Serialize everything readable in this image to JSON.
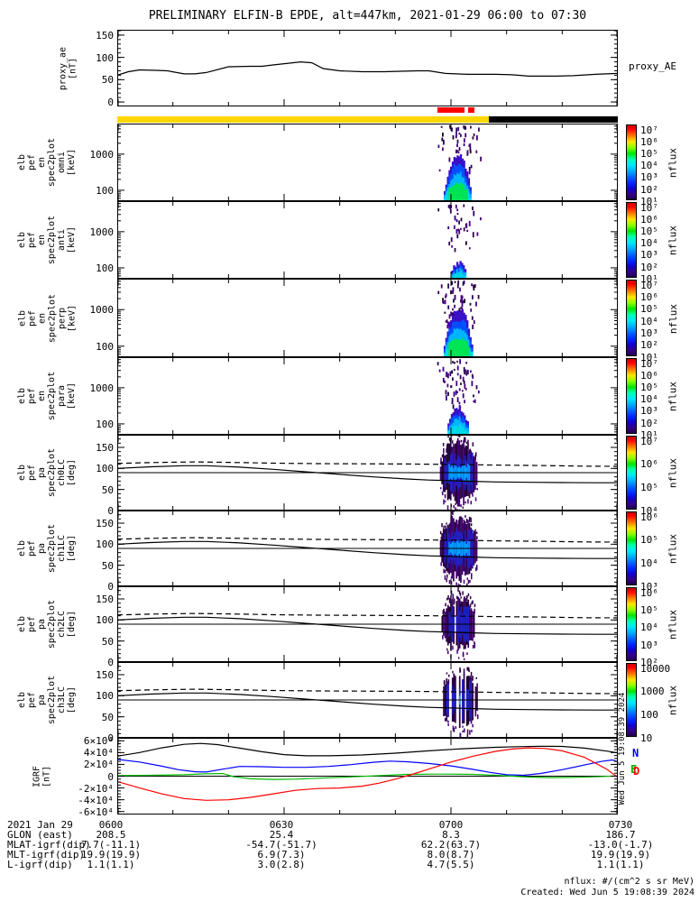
{
  "title": "PRELIMINARY ELFIN-B EPDE, alt=447km, 2021-01-29 06:00 to 07:30",
  "footer": {
    "units_note": "nflux: #/(cm^2 s sr MeV)",
    "created_note": "Created: Wed Jun  5 19:08:39 2024",
    "created_vertical": "Wed Jun  5 19:08:39 2024"
  },
  "colors": {
    "red": "#ff0000",
    "yellow": "#ffd700",
    "black": "#000000",
    "line_black": "#000000",
    "line_blue": "#0000ff",
    "line_green": "#00bb00",
    "line_red": "#ff0000"
  },
  "time_axis": {
    "date_label": "2021 Jan 29",
    "tick_labels": [
      "0600",
      "0630",
      "0700",
      "0730"
    ],
    "tick_minutes": [
      0,
      30,
      60,
      90
    ],
    "minor_every_min": 10,
    "start_min": 0,
    "end_min": 90
  },
  "bottom_rows": [
    {
      "label": "GLON (east)",
      "values": [
        "208.5",
        "25.4",
        "8.3",
        "186.7"
      ]
    },
    {
      "label": "MLAT-igrf(dip)",
      "values": [
        "7.7(-11.1)",
        "-54.7(-51.7)",
        "62.2(63.7)",
        "-13.0(-1.7)"
      ]
    },
    {
      "label": "MLT-igrf(dip)",
      "values": [
        "19.9(19.9)",
        "6.9(7.3)",
        "8.0(8.7)",
        "19.9(19.9)"
      ]
    },
    {
      "label": "L-igrf(dip)",
      "values": [
        "1.1(1.1)",
        "3.0(2.8)",
        "4.7(5.5)",
        "1.1(1.1)"
      ]
    }
  ],
  "pa_lines": {
    "ninety_deg": 90,
    "loss_cone": {
      "style": "solid",
      "x": [
        0,
        6,
        12,
        16,
        22,
        28,
        34,
        40,
        46,
        52,
        56,
        60,
        64,
        68,
        74,
        80,
        86,
        90
      ],
      "y": [
        100,
        104,
        106.5,
        106.5,
        103,
        98,
        92,
        86,
        80,
        75,
        72.5,
        71,
        69.5,
        68,
        67,
        66.5,
        66,
        66
      ]
    },
    "anti_loss_cone": {
      "style": "dashed",
      "x": [
        0,
        8,
        14,
        20,
        28,
        36,
        44,
        52,
        60,
        68,
        76,
        84,
        90
      ],
      "y": [
        112,
        114.5,
        115.5,
        114.5,
        112.5,
        111.5,
        111,
        110.5,
        109.5,
        108,
        107,
        105.5,
        105
      ]
    }
  },
  "chart_data": [
    {
      "id": "proxy_ae",
      "type": "line",
      "right_label": "proxy_AE",
      "ylabel_lines": [
        "proxy_ae",
        "[nT]"
      ],
      "yrange": [
        -10,
        162
      ],
      "yticks": [
        0,
        50,
        100,
        150
      ],
      "ytick_labels": [
        "0",
        "50",
        "100",
        "150"
      ],
      "yminor": 10,
      "series": [
        {
          "name": "proxy_AE",
          "color": "#000000",
          "x": [
            0,
            2,
            4,
            7,
            9,
            12,
            14,
            16,
            20,
            24,
            26,
            28,
            33,
            35,
            37,
            40,
            44,
            48,
            51,
            54,
            56,
            59,
            63,
            68,
            71,
            74,
            79,
            82,
            86,
            90
          ],
          "y": [
            60,
            68,
            72,
            71,
            70,
            63,
            63,
            66,
            79,
            80,
            80,
            83,
            90,
            88,
            75,
            70,
            68,
            68,
            69,
            70,
            70,
            64,
            62,
            62,
            61,
            58,
            58,
            59,
            62,
            64
          ]
        }
      ]
    },
    {
      "id": "availability",
      "type": "strip",
      "red_segments_min": [
        [
          57.5,
          62.5
        ],
        [
          63.0,
          64.2
        ]
      ],
      "yellow_min": [
        0,
        66.8
      ],
      "black_min": [
        66.8,
        90
      ]
    },
    {
      "id": "en_omni",
      "type": "espec",
      "log": true,
      "ylabel_lines": [
        "elb",
        "pef",
        "en",
        "spec2plot",
        "omni",
        "[keV]"
      ],
      "yrange_kev": [
        50,
        7000
      ],
      "yticks": [
        1000,
        100
      ],
      "ytick_labels": [
        "1000",
        "100"
      ],
      "colorbar_labels": [
        "10⁷",
        "10⁶",
        "10⁵",
        "10⁴",
        "10³",
        "10²",
        "10¹"
      ],
      "colorbar_unit": "nflux",
      "burst": {
        "t": [
          57.2,
          65.3
        ],
        "core": [
          58.4,
          63.8
        ],
        "intensity": "strong",
        "seed": 101
      }
    },
    {
      "id": "en_anti",
      "type": "espec",
      "log": true,
      "ylabel_lines": [
        "elb",
        "pef",
        "en",
        "spec2plot",
        "anti",
        "[keV]"
      ],
      "yrange_kev": [
        50,
        7000
      ],
      "yticks": [
        1000,
        100
      ],
      "ytick_labels": [
        "1000",
        "100"
      ],
      "colorbar_labels": [
        "10⁷",
        "10⁶",
        "10⁵",
        "10⁴",
        "10³",
        "10²",
        "10¹"
      ],
      "colorbar_unit": "nflux",
      "burst": {
        "t": [
          57.2,
          65.3
        ],
        "core": [
          59.5,
          63.0
        ],
        "intensity": "sparse",
        "seed": 202
      }
    },
    {
      "id": "en_perp",
      "type": "espec",
      "log": true,
      "ylabel_lines": [
        "elb",
        "pef",
        "en",
        "spec2plot",
        "perp",
        "[keV]"
      ],
      "yrange_kev": [
        50,
        7000
      ],
      "yticks": [
        1000,
        100
      ],
      "ytick_labels": [
        "1000",
        "100"
      ],
      "colorbar_labels": [
        "10⁷",
        "10⁶",
        "10⁵",
        "10⁴",
        "10³",
        "10²",
        "10¹"
      ],
      "colorbar_unit": "nflux",
      "burst": {
        "t": [
          57.2,
          65.3
        ],
        "core": [
          58.4,
          64.0
        ],
        "intensity": "strong2",
        "seed": 303
      }
    },
    {
      "id": "en_para",
      "type": "espec",
      "log": true,
      "ylabel_lines": [
        "elb",
        "pef",
        "en",
        "spec2plot",
        "para",
        "[keV]"
      ],
      "yrange_kev": [
        50,
        7000
      ],
      "yticks": [
        1000,
        100
      ],
      "ytick_labels": [
        "1000",
        "100"
      ],
      "colorbar_labels": [
        "10⁷",
        "10⁶",
        "10⁵",
        "10⁴",
        "10³",
        "10²",
        "10¹"
      ],
      "colorbar_unit": "nflux",
      "burst": {
        "t": [
          57.2,
          65.3
        ],
        "core": [
          58.8,
          63.4
        ],
        "intensity": "medium",
        "seed": 404
      }
    },
    {
      "id": "pa_ch0",
      "type": "paspec",
      "ylabel_lines": [
        "elb",
        "pef",
        "pa",
        "spec2plot",
        "ch0LC",
        "[deg]"
      ],
      "yrange": [
        0,
        180
      ],
      "yticks": [
        0,
        50,
        100,
        150
      ],
      "ytick_labels": [
        "0",
        "50",
        "100",
        "150"
      ],
      "yminor": 10,
      "colorbar_labels": [
        "10⁷",
        "10⁶",
        "10⁵",
        "10⁴"
      ],
      "colorbar_unit": "nflux",
      "burst": {
        "t": [
          58.0,
          64.6
        ],
        "intensity": "strong",
        "seed": 505
      }
    },
    {
      "id": "pa_ch1",
      "type": "paspec",
      "ylabel_lines": [
        "elb",
        "pef",
        "pa",
        "spec2plot",
        "ch1LC",
        "[deg]"
      ],
      "yrange": [
        0,
        180
      ],
      "yticks": [
        0,
        50,
        100,
        150
      ],
      "ytick_labels": [
        "0",
        "50",
        "100",
        "150"
      ],
      "yminor": 10,
      "colorbar_labels": [
        "10⁶",
        "10⁵",
        "10⁴",
        "10³"
      ],
      "colorbar_unit": "nflux",
      "burst": {
        "t": [
          58.0,
          64.6
        ],
        "intensity": "strong",
        "seed": 606
      }
    },
    {
      "id": "pa_ch2",
      "type": "paspec",
      "ylabel_lines": [
        "elb",
        "pef",
        "pa",
        "spec2plot",
        "ch2LC",
        "[deg]"
      ],
      "yrange": [
        0,
        180
      ],
      "yticks": [
        0,
        50,
        100,
        150
      ],
      "ytick_labels": [
        "0",
        "50",
        "100",
        "150"
      ],
      "yminor": 10,
      "colorbar_labels": [
        "10⁶",
        "10⁵",
        "10⁴",
        "10³",
        "10²"
      ],
      "colorbar_unit": "nflux",
      "burst": {
        "t": [
          58.3,
          64.2
        ],
        "intensity": "medium",
        "seed": 707
      }
    },
    {
      "id": "pa_ch3",
      "type": "paspec",
      "ylabel_lines": [
        "elb",
        "pef",
        "pa",
        "spec2plot",
        "ch3LC",
        "[deg]"
      ],
      "yrange": [
        0,
        180
      ],
      "yticks": [
        0,
        50,
        100,
        150
      ],
      "ytick_labels": [
        "0",
        "50",
        "100",
        "150"
      ],
      "yminor": 10,
      "colorbar_labels": [
        "10000",
        "1000",
        "100",
        "10"
      ],
      "colorbar_unit": "nflux",
      "burst": {
        "t": [
          57.8,
          64.8
        ],
        "intensity": "sparse",
        "seed": 808
      }
    },
    {
      "id": "igrf",
      "type": "line",
      "ylabel_lines": [
        "IGRF",
        "[nT]"
      ],
      "yrange": [
        -65000,
        65000
      ],
      "yticks": [
        60000,
        40000,
        20000,
        0,
        -20000,
        -40000,
        -60000
      ],
      "ytick_labels": [
        "6×10⁴",
        "4×10⁴",
        "2×10⁴",
        "0",
        "-2×10⁴",
        "-4×10⁴",
        "-6×10⁴"
      ],
      "yminor": 5000,
      "zero_line": true,
      "legend": [
        {
          "label": "N",
          "color": "#0000ff"
        },
        {
          "label": "E",
          "color": "#00bb00"
        },
        {
          "label": "D",
          "color": "#ff0000"
        }
      ],
      "series": [
        {
          "name": "Btotal",
          "color": "#000000",
          "x": [
            0,
            4,
            8,
            12,
            15,
            18,
            22,
            26,
            30,
            34,
            38,
            44,
            50,
            56,
            62,
            68,
            72,
            76,
            80,
            84,
            88,
            90
          ],
          "y": [
            34000,
            40000,
            48000,
            54000,
            55500,
            53500,
            47500,
            41500,
            36500,
            34500,
            34500,
            36000,
            39000,
            43000,
            46500,
            49000,
            50000,
            50800,
            50500,
            47500,
            42500,
            39500
          ]
        },
        {
          "name": "N",
          "color": "#0000ff",
          "x": [
            0,
            4,
            8,
            11,
            14,
            16,
            19,
            22,
            26,
            30,
            34,
            38,
            42,
            46,
            49,
            52,
            56,
            60,
            64,
            67,
            70,
            73,
            76,
            80,
            84,
            87,
            89,
            90
          ],
          "y": [
            28500,
            24000,
            17000,
            11000,
            7500,
            7000,
            12000,
            16500,
            16000,
            15000,
            15000,
            16500,
            19500,
            23500,
            25500,
            24500,
            21500,
            17500,
            11500,
            6500,
            2500,
            1500,
            4500,
            11000,
            19000,
            25000,
            27500,
            24500
          ]
        },
        {
          "name": "E",
          "color": "#00bb00",
          "x": [
            0,
            6,
            12,
            16,
            19,
            21,
            24,
            28,
            32,
            36,
            40,
            46,
            52,
            58,
            64,
            68,
            71,
            74,
            78,
            82,
            86,
            90
          ],
          "y": [
            1000,
            1500,
            2500,
            4000,
            4500,
            -1000,
            -4500,
            -5500,
            -5000,
            -3500,
            -2000,
            500,
            3000,
            3500,
            3000,
            1500,
            0,
            -1500,
            -2500,
            -2000,
            -1000,
            500
          ]
        },
        {
          "name": "D",
          "color": "#ff0000",
          "x": [
            0,
            4,
            8,
            12,
            16,
            20,
            24,
            28,
            32,
            36,
            40,
            44,
            47,
            50,
            53,
            56,
            60,
            64,
            68,
            71,
            74,
            77,
            80,
            84,
            88,
            90
          ],
          "y": [
            -9000,
            -20000,
            -30000,
            -38000,
            -41000,
            -40000,
            -36000,
            -30000,
            -24000,
            -21000,
            -20000,
            -17000,
            -12000,
            -5000,
            3000,
            12000,
            24000,
            34000,
            42000,
            46000,
            48000,
            47000,
            43000,
            32000,
            12000,
            -2000
          ]
        }
      ]
    }
  ]
}
